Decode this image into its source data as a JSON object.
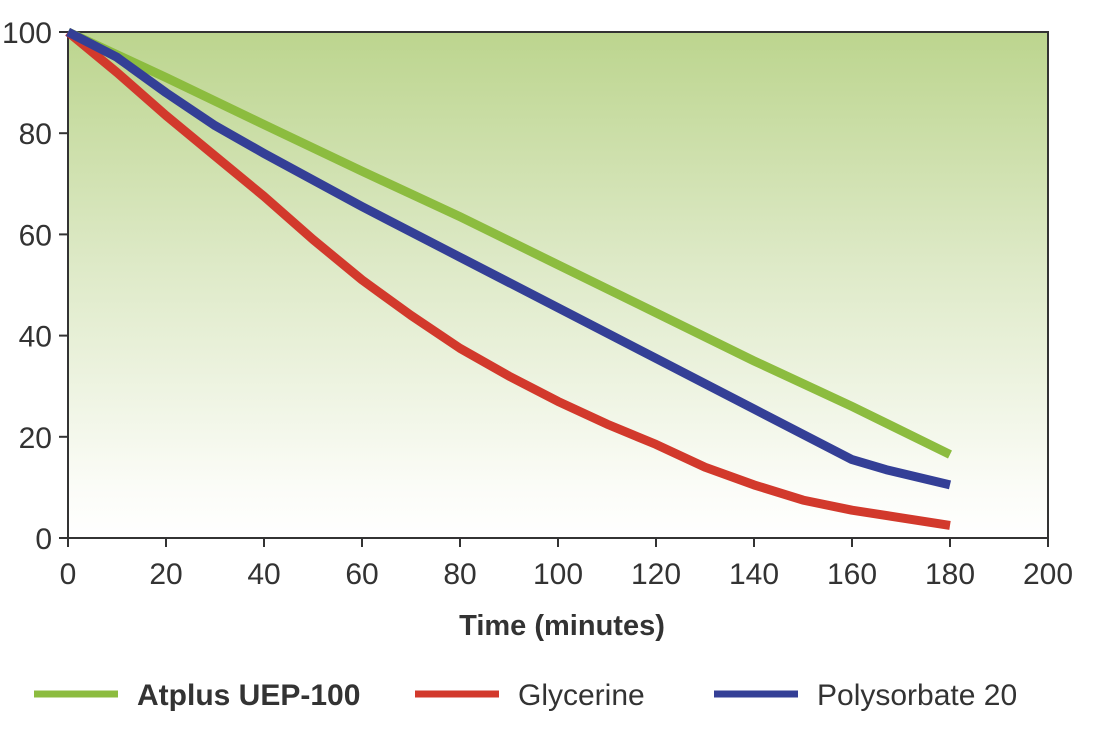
{
  "chart_data": {
    "type": "line",
    "title": "",
    "xlabel": "Time (minutes)",
    "ylabel": "",
    "xlim": [
      0,
      200
    ],
    "ylim": [
      0,
      100
    ],
    "xticks": [
      "0",
      "20",
      "40",
      "60",
      "80",
      "100",
      "120",
      "140",
      "160",
      "180",
      "200"
    ],
    "yticks": [
      "0",
      "20",
      "40",
      "60",
      "80",
      "100"
    ],
    "background": "green-to-white vertical gradient",
    "legend_position": "bottom",
    "series": [
      {
        "name": "Atplus UEP-100",
        "color": "#8cbc3f",
        "bold_label": true,
        "x": [
          0,
          20,
          40,
          60,
          80,
          100,
          120,
          140,
          160,
          180
        ],
        "y": [
          100,
          91,
          81.7,
          72.5,
          63.5,
          54,
          44.5,
          35,
          26,
          16.5
        ]
      },
      {
        "name": "Glycerine",
        "color": "#d2392c",
        "bold_label": false,
        "x": [
          0,
          10,
          20,
          30,
          40,
          50,
          60,
          70,
          80,
          90,
          100,
          110,
          120,
          130,
          140,
          150,
          160,
          170,
          180
        ],
        "y": [
          100,
          92,
          83.5,
          75.5,
          67.5,
          59,
          51,
          44,
          37.5,
          32,
          27,
          22.5,
          18.5,
          14,
          10.5,
          7.5,
          5.5,
          4,
          2.5
        ]
      },
      {
        "name": "Polysorbate 20",
        "color": "#343f96",
        "bold_label": false,
        "x": [
          0,
          10,
          20,
          30,
          40,
          60,
          80,
          100,
          120,
          140,
          160,
          167,
          180
        ],
        "y": [
          100,
          95,
          88,
          81.5,
          76,
          65.5,
          55.5,
          45.5,
          35.5,
          25.5,
          15.5,
          13.5,
          10.5
        ]
      }
    ]
  }
}
